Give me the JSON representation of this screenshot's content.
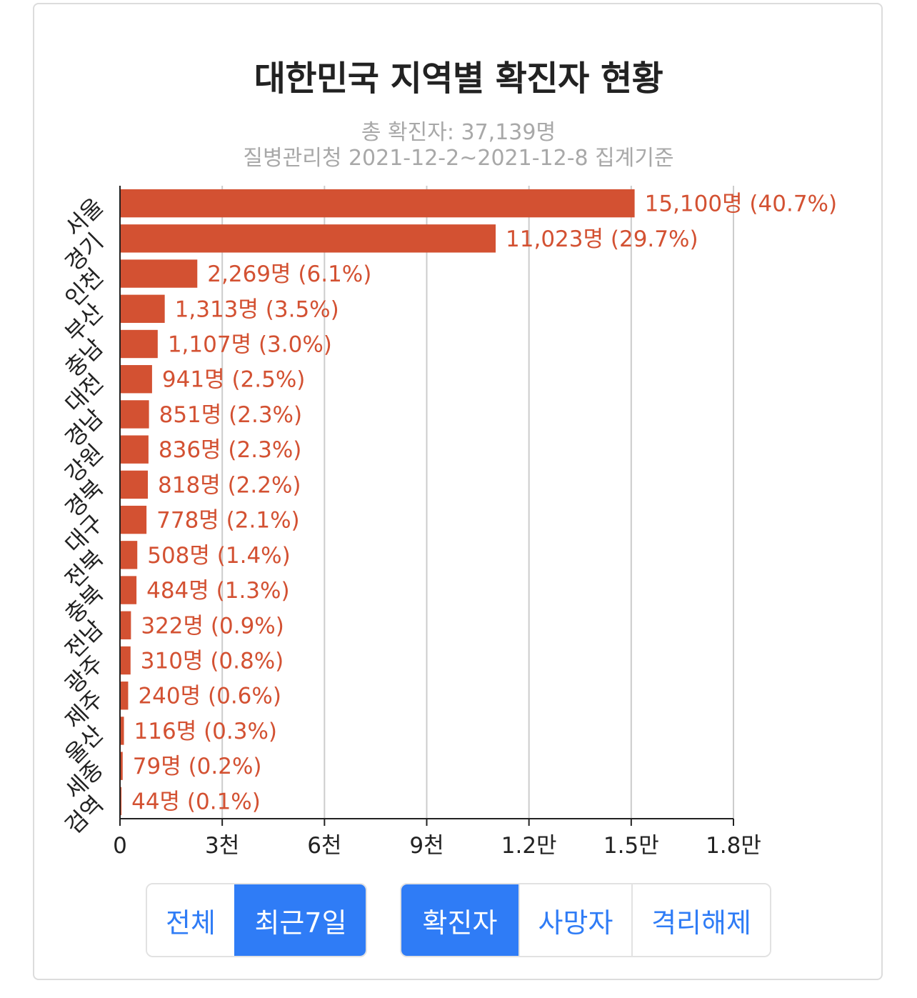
{
  "title": "대한민국 지역별 확진자 현황",
  "subtitle_total": "총 확진자: 37,139명",
  "subtitle_source": "질병관리청 2021-12-2~2021-12-8 집계기준",
  "period_buttons": [
    {
      "label": "전체",
      "active": false
    },
    {
      "label": "최근7일",
      "active": true
    }
  ],
  "metric_buttons": [
    {
      "label": "확진자",
      "active": true
    },
    {
      "label": "사망자",
      "active": false
    },
    {
      "label": "격리해제",
      "active": false
    }
  ],
  "colors": {
    "bar": "#d35132",
    "bar_label": "#d35132",
    "button_accent": "#2f7cf6",
    "grid": "#cccccc"
  },
  "chart_data": {
    "type": "bar",
    "orientation": "horizontal",
    "categories": [
      "서울",
      "경기",
      "인천",
      "부산",
      "충남",
      "대전",
      "경남",
      "강원",
      "경북",
      "대구",
      "전북",
      "충북",
      "전남",
      "광주",
      "제주",
      "울산",
      "세종",
      "검역"
    ],
    "values": [
      15100,
      11023,
      2269,
      1313,
      1107,
      941,
      851,
      836,
      818,
      778,
      508,
      484,
      322,
      310,
      240,
      116,
      79,
      44
    ],
    "value_labels": [
      "15,100명 (40.7%)",
      "11,023명 (29.7%)",
      "2,269명 (6.1%)",
      "1,313명 (3.5%)",
      "1,107명 (3.0%)",
      "941명 (2.5%)",
      "851명 (2.3%)",
      "836명 (2.3%)",
      "818명 (2.2%)",
      "778명 (2.1%)",
      "508명 (1.4%)",
      "484명 (1.3%)",
      "322명 (0.9%)",
      "310명 (0.8%)",
      "240명 (0.6%)",
      "116명 (0.3%)",
      "79명 (0.2%)",
      "44명 (0.1%)"
    ],
    "x_ticks": [
      0,
      3000,
      6000,
      9000,
      12000,
      15000,
      18000
    ],
    "x_tick_labels": [
      "0",
      "3천",
      "6천",
      "9천",
      "1.2만",
      "1.5만",
      "1.8만"
    ],
    "xlim": [
      0,
      18000
    ],
    "grid": true,
    "legend": false
  }
}
